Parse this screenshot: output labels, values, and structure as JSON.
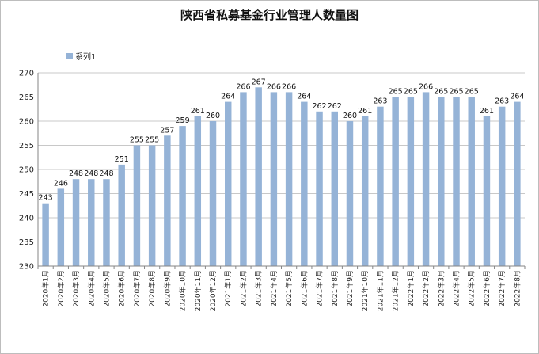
{
  "chart_data": {
    "type": "bar",
    "title": "陕西省私募基金行业管理人数量图",
    "xlabel": "",
    "ylabel": "",
    "ylim": [
      230,
      270
    ],
    "yticks": [
      230,
      235,
      240,
      245,
      250,
      255,
      260,
      265,
      270
    ],
    "grid": true,
    "legend": "top-left",
    "bar_color": "#95b3d7",
    "categories": [
      "2020年1月",
      "2020年2月",
      "2020年3月",
      "2020年4月",
      "2020年5月",
      "2020年6月",
      "2020年7月",
      "2020年8月",
      "2020年9月",
      "2020年10月",
      "2020年11月",
      "2020年12月",
      "2021年1月",
      "2021年2月",
      "2021年3月",
      "2021年4月",
      "2021年5月",
      "2021年6月",
      "2021年7月",
      "2021年8月",
      "2021年9月",
      "2021年10月",
      "2021年11月",
      "2021年12月",
      "2022年1月",
      "2022年2月",
      "2022年3月",
      "2022年4月",
      "2022年5月",
      "2022年6月",
      "2022年7月",
      "2022年8月"
    ],
    "series": [
      {
        "name": "系列1",
        "values": [
          243,
          246,
          248,
          248,
          248,
          251,
          255,
          255,
          257,
          259,
          261,
          260,
          264,
          266,
          267,
          266,
          266,
          264,
          262,
          262,
          260,
          261,
          263,
          265,
          265,
          266,
          265,
          265,
          265,
          261,
          263,
          264
        ]
      }
    ]
  }
}
